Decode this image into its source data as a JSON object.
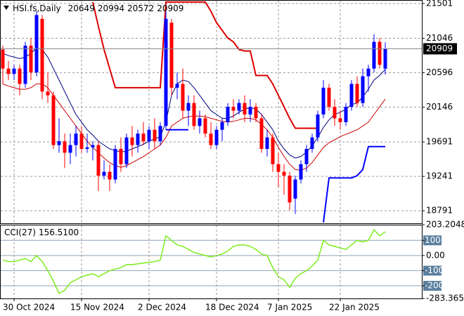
{
  "chart_data": [
    {
      "type": "candlestick",
      "title": "HSI.fs,Daily",
      "open": [
        20900,
        20650,
        20580,
        20650,
        20450,
        20950,
        20600,
        21300,
        20350,
        20300,
        19650,
        19700,
        19550,
        19650,
        19800,
        19600,
        19620,
        19650,
        19250,
        19300,
        19200,
        19600,
        19400,
        19750,
        19650,
        19800,
        19700,
        19850,
        19700,
        19900,
        21250,
        20400,
        20450,
        20100,
        20200,
        19900,
        20000,
        19800,
        19650,
        19850,
        19950,
        20150,
        20100,
        20200,
        20050,
        20150,
        20000,
        19600,
        19750,
        19400,
        19300,
        19250,
        18950,
        19200,
        19400,
        19600,
        19750,
        20050,
        20400,
        20150,
        20000,
        19950,
        20150,
        20450,
        20200,
        20550,
        20650,
        21000,
        20649
      ],
      "high": [
        20950,
        20750,
        20700,
        20700,
        21000,
        21050,
        21400,
        21350,
        20600,
        20350,
        20000,
        19800,
        19800,
        19900,
        19900,
        19800,
        19700,
        19700,
        19450,
        19400,
        19650,
        19750,
        19800,
        19900,
        19850,
        19950,
        19900,
        20000,
        19950,
        21400,
        21300,
        20600,
        20650,
        20300,
        20300,
        20100,
        20050,
        19950,
        19900,
        20000,
        20200,
        20250,
        20250,
        20300,
        20250,
        20200,
        20050,
        19850,
        19800,
        19550,
        19400,
        19300,
        19250,
        19450,
        19650,
        19800,
        20100,
        20500,
        20450,
        20250,
        20100,
        20200,
        20500,
        20550,
        20650,
        20700,
        21100,
        21050,
        20994
      ],
      "low": [
        20450,
        20500,
        20500,
        20300,
        20400,
        20500,
        20550,
        20250,
        20200,
        19600,
        19550,
        19350,
        19400,
        19500,
        19550,
        19550,
        19450,
        19050,
        19200,
        19050,
        19150,
        19300,
        19350,
        19500,
        19550,
        19650,
        19600,
        19600,
        19650,
        19850,
        20300,
        20250,
        20000,
        19900,
        19850,
        19800,
        19750,
        19600,
        19600,
        19700,
        19900,
        20000,
        20050,
        19950,
        19950,
        19950,
        19550,
        19500,
        19300,
        19100,
        19000,
        18800,
        18750,
        19150,
        19300,
        19550,
        19700,
        20000,
        20100,
        19900,
        19850,
        19900,
        20100,
        20150,
        20150,
        20350,
        20600,
        20650,
        20572
      ],
      "close": [
        20650,
        20580,
        20650,
        20450,
        20950,
        20600,
        21350,
        20350,
        20300,
        19650,
        19700,
        19550,
        19650,
        19800,
        19600,
        19620,
        19650,
        19250,
        19300,
        19200,
        19600,
        19400,
        19750,
        19650,
        19800,
        19700,
        19850,
        19700,
        19900,
        21300,
        20400,
        20450,
        20100,
        20200,
        19900,
        20000,
        19800,
        19650,
        19850,
        19950,
        20150,
        20100,
        20200,
        20050,
        20150,
        20000,
        19600,
        19750,
        19400,
        19300,
        19250,
        18900,
        19200,
        19400,
        19600,
        19750,
        20050,
        20400,
        20150,
        20000,
        19950,
        20150,
        20450,
        20200,
        20550,
        20650,
        21000,
        20700,
        20909
      ],
      "up_color": "#0000ff",
      "down_color": "#ff0000",
      "overlays": [
        {
          "color": "#000080",
          "width": 1,
          "values": [
            20850,
            20820,
            20800,
            20780,
            20800,
            20850,
            20920,
            20900,
            20800,
            20650,
            20500,
            20350,
            20200,
            20050,
            19950,
            19850,
            19780,
            19700,
            19650,
            19600,
            19580,
            19560,
            19570,
            19600,
            19630,
            19660,
            19700,
            19730,
            19760,
            19950,
            20300,
            20450,
            20500,
            20480,
            20400,
            20300,
            20200,
            20100,
            20050,
            20000,
            20000,
            20030,
            20080,
            20120,
            20140,
            20120,
            20050,
            19950,
            19850,
            19700,
            19600,
            19520,
            19480,
            19500,
            19560,
            19640,
            19750,
            19880,
            19980,
            20050,
            20080,
            20120,
            20180,
            20200,
            20280,
            20380,
            20500,
            20560,
            20640
          ]
        },
        {
          "color": "#cc0000",
          "width": 1,
          "values": [
            20450,
            20420,
            20400,
            20380,
            20380,
            20400,
            20450,
            20450,
            20400,
            20300,
            20200,
            20100,
            20000,
            19900,
            19800,
            19700,
            19620,
            19550,
            19480,
            19420,
            19380,
            19360,
            19380,
            19420,
            19460,
            19500,
            19550,
            19600,
            19650,
            19750,
            19900,
            19950,
            20000,
            20020,
            20030,
            20030,
            20020,
            20000,
            19980,
            19960,
            19950,
            19960,
            19980,
            20000,
            20000,
            19980,
            19920,
            19850,
            19750,
            19620,
            19500,
            19400,
            19330,
            19320,
            19350,
            19420,
            19520,
            19620,
            19680,
            19720,
            19760,
            19790,
            19820,
            19850,
            19900,
            19950,
            20050,
            20150,
            20250
          ]
        },
        {
          "color": "#dd0000",
          "width": 2,
          "values": [
            null,
            null,
            null,
            null,
            null,
            null,
            null,
            null,
            null,
            null,
            null,
            null,
            null,
            null,
            null,
            null,
            21520,
            21200,
            20900,
            20650,
            20400,
            20400,
            20400,
            20400,
            20400,
            20400,
            20400,
            20400,
            20400,
            21520,
            21520,
            21520,
            21520,
            21520,
            21520,
            21520,
            21520,
            21400,
            21250,
            21150,
            21050,
            21000,
            20900,
            20880,
            20880,
            20560,
            20560,
            20560,
            20450,
            20300,
            20150,
            20000,
            19870,
            19870,
            19870,
            19870,
            19870,
            null,
            null,
            null,
            null,
            null,
            null,
            null,
            null,
            null,
            null,
            null,
            null
          ]
        },
        {
          "color": "#0000ff",
          "width": 2,
          "values": [
            null,
            null,
            null,
            null,
            null,
            null,
            null,
            null,
            null,
            null,
            null,
            null,
            null,
            null,
            null,
            null,
            null,
            null,
            null,
            null,
            null,
            null,
            null,
            null,
            null,
            null,
            null,
            null,
            null,
            19850,
            19850,
            19850,
            19850,
            19850,
            null,
            null,
            null,
            null,
            null,
            null,
            null,
            null,
            null,
            null,
            null,
            null,
            null,
            null,
            null,
            null,
            null,
            null,
            null,
            null,
            null,
            null,
            null,
            18640,
            19220,
            19220,
            19220,
            19220,
            19220,
            19250,
            19330,
            19630,
            19630,
            19630,
            19630
          ]
        }
      ],
      "ylim": [
        18627,
        21547
      ],
      "yticks": [
        18791,
        19241,
        19691,
        20146,
        20596,
        21046,
        21501
      ],
      "grid": true
    },
    {
      "type": "line",
      "name": "CCI(27)",
      "value_label": "156.5100",
      "color": "#7cec1c",
      "values": [
        -30,
        -40,
        -40,
        -30,
        -20,
        -40,
        0,
        -40,
        -100,
        -170,
        -250,
        -230,
        -180,
        -160,
        -140,
        -130,
        -120,
        -140,
        -120,
        -100,
        -90,
        -80,
        -60,
        -60,
        -55,
        -50,
        -45,
        -40,
        -30,
        130,
        100,
        70,
        60,
        40,
        20,
        10,
        0,
        -10,
        0,
        10,
        30,
        60,
        70,
        70,
        60,
        40,
        10,
        0,
        -80,
        -140,
        -160,
        -210,
        -150,
        -120,
        -100,
        -70,
        -30,
        100,
        70,
        60,
        50,
        40,
        70,
        100,
        90,
        100,
        170,
        130,
        156.51
      ],
      "categories": [
        null,
        null,
        "30 Oct 2024",
        null,
        null,
        null,
        null,
        null,
        null,
        null,
        null,
        null,
        null,
        null,
        "15 Nov 2024",
        null,
        null,
        null,
        null,
        null,
        null,
        null,
        null,
        null,
        null,
        null,
        "2 Dec 2024",
        null,
        null,
        null,
        null,
        null,
        null,
        null,
        null,
        null,
        null,
        null,
        "18 Dec 2024",
        null,
        null,
        null,
        null,
        null,
        null,
        null,
        null,
        null,
        null,
        "7 Jan 2025",
        null,
        null,
        null,
        null,
        null,
        null,
        null,
        null,
        null,
        null,
        "22 Jan 2025",
        null,
        null,
        null,
        null,
        null,
        null,
        null,
        null
      ],
      "ylim": [
        -283.365,
        203.2048
      ],
      "yticks": [
        203.2048,
        100,
        {
          "value": 0,
          "label": "0.00"
        },
        -100,
        -200,
        -283.365
      ]
    }
  ]
}
